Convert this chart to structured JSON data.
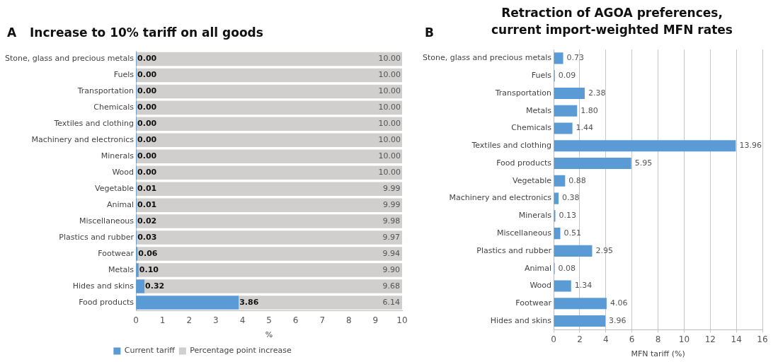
{
  "chart_data": [
    {
      "type": "bar",
      "title": "Increase to 10% tariff on all goods",
      "annotations": [
        "A"
      ],
      "orientation": "horizontal",
      "stacked": true,
      "xlabel": "%",
      "categories": [
        "Stone, glass and precious metals",
        "Fuels",
        "Transportation",
        "Chemicals",
        "Textiles and clothing",
        "Machinery and electronics",
        "Minerals",
        "Wood",
        "Vegetable",
        "Animal",
        "Miscellaneous",
        "Plastics and rubber",
        "Footwear",
        "Metals",
        "Hides and skins",
        "Food products"
      ],
      "series": [
        {
          "name": "Current tariff",
          "color": "#5b9bd5",
          "values": [
            0.0,
            0.0,
            0.0,
            0.0,
            0.0,
            0.0,
            0.0,
            0.0,
            0.01,
            0.01,
            0.02,
            0.03,
            0.06,
            0.1,
            0.32,
            3.86
          ],
          "value_labels": [
            "0.00",
            "0.00",
            "0.00",
            "0.00",
            "0.00",
            "0.00",
            "0.00",
            "0.00",
            "0.01",
            "0.01",
            "0.02",
            "0.03",
            "0.06",
            "0.10",
            "0.32",
            "3.86"
          ]
        },
        {
          "name": "Percentage point increase",
          "color": "#d0cfcd",
          "values": [
            10.0,
            10.0,
            10.0,
            10.0,
            10.0,
            10.0,
            10.0,
            10.0,
            9.99,
            9.99,
            9.98,
            9.97,
            9.94,
            9.9,
            9.68,
            6.14
          ],
          "value_labels": [
            "10.00",
            "10.00",
            "10.00",
            "10.00",
            "10.00",
            "10.00",
            "10.00",
            "10.00",
            "9.99",
            "9.99",
            "9.98",
            "9.97",
            "9.94",
            "9.90",
            "9.68",
            "6.14"
          ]
        }
      ],
      "xlim": [
        0,
        10
      ],
      "xticks": [
        0,
        1,
        2,
        3,
        4,
        5,
        6,
        7,
        8,
        9,
        10
      ],
      "legend": "bottom",
      "grid": false
    },
    {
      "type": "bar",
      "title": "Retraction of AGOA preferences,\ncurrent import-weighted MFN rates",
      "annotations": [
        "B"
      ],
      "orientation": "horizontal",
      "xlabel": "MFN tariff (%)",
      "categories": [
        "Stone, glass and precious metals",
        "Fuels",
        "Transportation",
        "Metals",
        "Chemicals",
        "Textiles and clothing",
        "Food products",
        "Vegetable",
        "Machinery and electronics",
        "Minerals",
        "Miscellaneous",
        "Plastics and rubber",
        "Animal",
        "Wood",
        "Footwear",
        "Hides and skins"
      ],
      "series": [
        {
          "color": "#5b9bd5",
          "values": [
            0.73,
            0.09,
            2.38,
            1.8,
            1.44,
            13.96,
            5.95,
            0.88,
            0.38,
            0.13,
            0.51,
            2.95,
            0.08,
            1.34,
            4.06,
            3.96
          ],
          "value_labels": [
            "0.73",
            "0.09",
            "2.38",
            "1.80",
            "1.44",
            "13.96",
            "5.95",
            "0.88",
            "0.38",
            "0.13",
            "0.51",
            "2.95",
            "0.08",
            "1.34",
            "4.06",
            "3.96"
          ]
        }
      ],
      "xlim": [
        0,
        16
      ],
      "xticks": [
        0,
        2,
        4,
        6,
        8,
        10,
        12,
        14,
        16
      ],
      "grid": "x"
    }
  ]
}
